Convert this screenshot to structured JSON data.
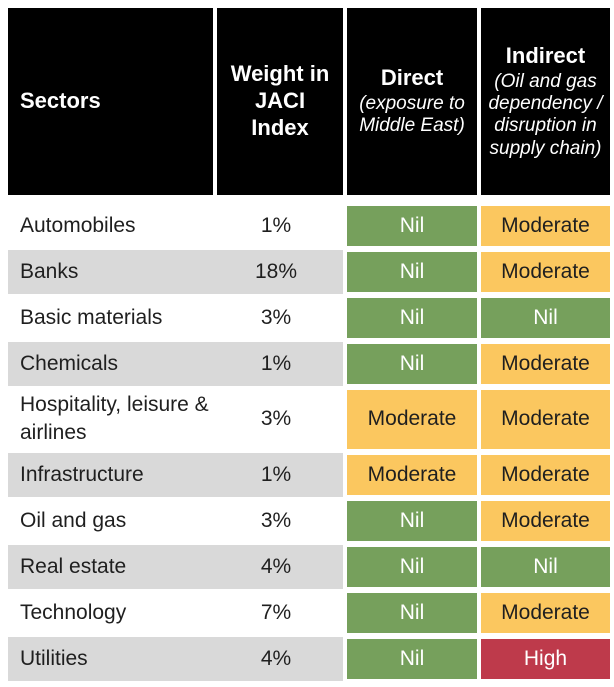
{
  "colors": {
    "header_bg": "#000000",
    "header_text": "#ffffff",
    "row_bg": "#ffffff",
    "row_alt_bg": "#d9d9d9",
    "body_text": "#1f1f1f",
    "nil_bg": "#76a05c",
    "nil_text": "#ffffff",
    "moderate_bg": "#fbc75f",
    "moderate_text": "#1f1f1f",
    "high_bg": "#be3a4b",
    "high_text": "#ffffff"
  },
  "table": {
    "header": {
      "sectors": {
        "title": "Sectors"
      },
      "weight": {
        "title": "Weight in JACI Index"
      },
      "direct": {
        "title": "Direct",
        "subtitle": "(exposure to Middle East)"
      },
      "indirect": {
        "title": "Indirect",
        "subtitle": "(Oil and gas dependency / disruption in supply chain)"
      }
    },
    "rows": [
      {
        "sector": "Automobiles",
        "weight": "1%",
        "direct": "Nil",
        "indirect": "Moderate"
      },
      {
        "sector": "Banks",
        "weight": "18%",
        "direct": "Nil",
        "indirect": "Moderate"
      },
      {
        "sector": "Basic materials",
        "weight": "3%",
        "direct": "Nil",
        "indirect": "Nil"
      },
      {
        "sector": "Chemicals",
        "weight": "1%",
        "direct": "Nil",
        "indirect": "Moderate"
      },
      {
        "sector": "Hospitality, leisure & airlines",
        "weight": "3%",
        "direct": "Moderate",
        "indirect": "Moderate"
      },
      {
        "sector": "Infrastructure",
        "weight": "1%",
        "direct": "Moderate",
        "indirect": "Moderate"
      },
      {
        "sector": "Oil and gas",
        "weight": "3%",
        "direct": "Nil",
        "indirect": "Moderate"
      },
      {
        "sector": "Real estate",
        "weight": "4%",
        "direct": "Nil",
        "indirect": "Nil"
      },
      {
        "sector": "Technology",
        "weight": "7%",
        "direct": "Nil",
        "indirect": "Moderate"
      },
      {
        "sector": "Utilities",
        "weight": "4%",
        "direct": "Nil",
        "indirect": "High"
      }
    ]
  },
  "chart_data": {
    "type": "table",
    "title": "",
    "columns": [
      "Sectors",
      "Weight in JACI Index",
      "Direct (exposure to Middle East)",
      "Indirect (Oil and gas dependency / disruption in supply chain)"
    ],
    "rows": [
      [
        "Automobiles",
        "1%",
        "Nil",
        "Moderate"
      ],
      [
        "Banks",
        "18%",
        "Nil",
        "Moderate"
      ],
      [
        "Basic materials",
        "3%",
        "Nil",
        "Nil"
      ],
      [
        "Chemicals",
        "1%",
        "Nil",
        "Moderate"
      ],
      [
        "Hospitality, leisure & airlines",
        "3%",
        "Moderate",
        "Moderate"
      ],
      [
        "Infrastructure",
        "1%",
        "Moderate",
        "Moderate"
      ],
      [
        "Oil and gas",
        "3%",
        "Nil",
        "Moderate"
      ],
      [
        "Real estate",
        "4%",
        "Nil",
        "Nil"
      ],
      [
        "Technology",
        "7%",
        "Nil",
        "Moderate"
      ],
      [
        "Utilities",
        "4%",
        "Nil",
        "High"
      ]
    ],
    "legend": {
      "Nil": "#76a05c",
      "Moderate": "#fbc75f",
      "High": "#be3a4b"
    },
    "layout": {
      "row_shading": "alternating white / #d9d9d9 on first two columns",
      "rating_cells": "solid colored blocks in Direct and Indirect columns"
    }
  }
}
